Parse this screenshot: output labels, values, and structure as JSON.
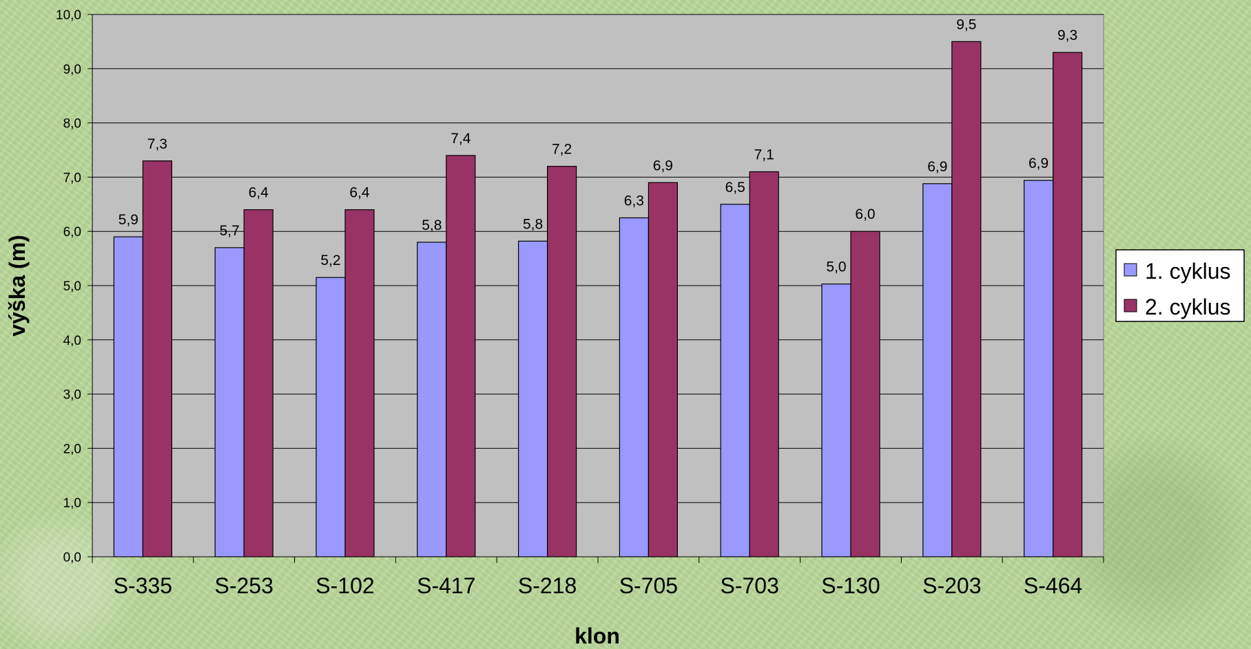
{
  "chart_data": {
    "type": "bar",
    "categories": [
      "S-335",
      "S-253",
      "S-102",
      "S-417",
      "S-218",
      "S-705",
      "S-703",
      "S-130",
      "S-203",
      "S-464"
    ],
    "series": [
      {
        "name": "1. cyklus",
        "color": "#9999ff",
        "values": [
          5.9,
          5.7,
          5.15,
          5.8,
          5.82,
          6.25,
          6.5,
          5.03,
          6.88,
          6.94
        ],
        "labels": [
          "5,9",
          "5,7",
          "5,2",
          "5,8",
          "5,8",
          "6,3",
          "6,5",
          "5,0",
          "6,9",
          "6,9"
        ]
      },
      {
        "name": "2. cyklus",
        "color": "#993366",
        "values": [
          7.3,
          6.4,
          6.4,
          7.4,
          7.2,
          6.9,
          7.1,
          6.0,
          9.5,
          9.3
        ],
        "labels": [
          "7,3",
          "6,4",
          "6,4",
          "7,4",
          "7,2",
          "6,9",
          "7,1",
          "6,0",
          "9,5",
          "9,3"
        ]
      }
    ],
    "xlabel": "klon",
    "ylabel": "výška (m)",
    "ylim": [
      0,
      10
    ],
    "yticks": [
      "0,0",
      "1,0",
      "2,0",
      "3,0",
      "4,0",
      "5,0",
      "6,0",
      "7,0",
      "8,0",
      "9,0",
      "10,0"
    ],
    "plot_background": "#c0c0c0",
    "grid": true,
    "legend_position": "right"
  }
}
